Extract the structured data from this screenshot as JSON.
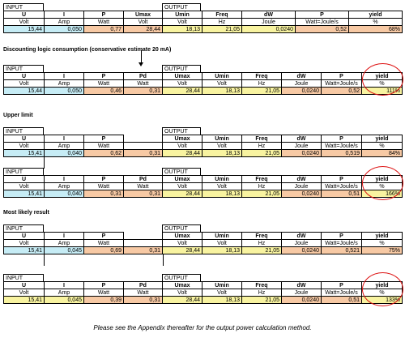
{
  "labels": {
    "input": "INPUT",
    "output": "OUTPUT"
  },
  "captions": {
    "discounting": "Discounting logic consumption (conservative estimate 20 mA)",
    "upper": "Upper limit",
    "likely": "Most likely result"
  },
  "footnote": "Please see the Appendix thereafter for the output power calculation method.",
  "tables": [
    {
      "headers": [
        "U",
        "I",
        "P",
        "Umax",
        "Umin",
        "Freq",
        "dW",
        "P",
        "yield"
      ],
      "units": [
        "Volt",
        "Amp",
        "Watt",
        "Volt",
        "Volt",
        "Hz",
        "Joule",
        "Watt=Joule/s",
        "%"
      ],
      "values": [
        "15,44",
        "0,050",
        "0,77",
        "28,44",
        "18,13",
        "21,05",
        "0,0240",
        "0,52",
        "68%"
      ]
    },
    {
      "headers": [
        "U",
        "I",
        "P",
        "Pd",
        "Umax",
        "Umin",
        "Freq",
        "dW",
        "P",
        "yield"
      ],
      "units": [
        "Volt",
        "Amp",
        "Watt",
        "Watt",
        "Volt",
        "Volt",
        "Hz",
        "Joule",
        "Watt=Joule/s",
        "%"
      ],
      "values": [
        "15,44",
        "0,050",
        "0,46",
        "0,31",
        "28,44",
        "18,13",
        "21,05",
        "0,0240",
        "0,52",
        "111%"
      ]
    },
    {
      "headers": [
        "U",
        "I",
        "P",
        "",
        "Umax",
        "Umin",
        "Freq",
        "dW",
        "P",
        "yield"
      ],
      "units": [
        "Volt",
        "Amp",
        "Watt",
        "",
        "Volt",
        "Volt",
        "Hz",
        "Joule",
        "Watt=Joule/s",
        "%"
      ],
      "values": [
        "15,41",
        "0,040",
        "0,62",
        "0,31",
        "28,44",
        "18,13",
        "21,05",
        "0,0240",
        "0,519",
        "84%"
      ]
    },
    {
      "headers": [
        "U",
        "I",
        "P",
        "Pd",
        "Umax",
        "Umin",
        "Freq",
        "dW",
        "P",
        "yield"
      ],
      "units": [
        "Volt",
        "Amp",
        "Watt",
        "Watt",
        "Volt",
        "Volt",
        "Hz",
        "Joule",
        "Watt=Joule/s",
        "%"
      ],
      "values": [
        "15,41",
        "0,040",
        "0,31",
        "0,31",
        "28,44",
        "18,13",
        "21,05",
        "0,0240",
        "0,51",
        "166%"
      ]
    },
    {
      "headers": [
        "U",
        "I",
        "P",
        "",
        "Umax",
        "Umin",
        "Freq",
        "dW",
        "P",
        "yield"
      ],
      "units": [
        "Volt",
        "Amp",
        "Watt",
        "",
        "Volt",
        "Volt",
        "Hz",
        "Joule",
        "Watt=Joule/s",
        "%"
      ],
      "values": [
        "15,41",
        "0,045",
        "0,69",
        "0,31",
        "28,44",
        "18,13",
        "21,05",
        "0,0240",
        "0,521",
        "75%"
      ]
    },
    {
      "headers": [
        "U",
        "I",
        "P",
        "Pd",
        "Umax",
        "Umin",
        "Freq",
        "dW",
        "P",
        "yield"
      ],
      "units": [
        "Volt",
        "Amp",
        "Watt",
        "Watt",
        "Volt",
        "Volt",
        "Hz",
        "Joule",
        "Watt=Joule/s",
        "%"
      ],
      "values": [
        "15,41",
        "0,045",
        "0,39",
        "0,31",
        "28,44",
        "18,13",
        "21,05",
        "0,0240",
        "0,51",
        "133%"
      ]
    }
  ],
  "colors": {
    "cyan": "#c6ecf5",
    "orange": "#f7c9a4",
    "yellow": "#f8f3a0",
    "circle": "#d11111"
  }
}
